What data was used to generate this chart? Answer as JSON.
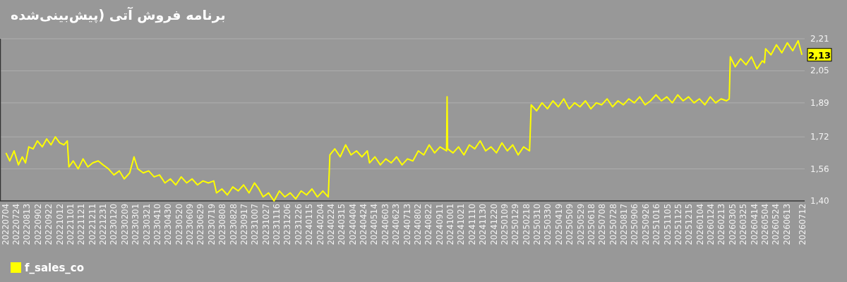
{
  "chart_data": {
    "type": "line",
    "title": "برنامه فروش آتی (پیش‌بینی‌شده",
    "xlim": [
      "2022-06-24",
      "2026-07-16"
    ],
    "xticks": [
      {
        "value": "2022-07-04",
        "label": "20220704"
      },
      {
        "value": "2022-07-24",
        "label": "20220724"
      },
      {
        "value": "2022-08-13",
        "label": "20220813"
      },
      {
        "value": "2022-09-02",
        "label": "20220902"
      },
      {
        "value": "2022-09-22",
        "label": "20220922"
      },
      {
        "value": "2022-10-12",
        "label": "20221012"
      },
      {
        "value": "2022-11-01",
        "label": "20221101"
      },
      {
        "value": "2022-11-21",
        "label": "20221121"
      },
      {
        "value": "2022-12-11",
        "label": "20221211"
      },
      {
        "value": "2022-12-31",
        "label": "20221231"
      },
      {
        "value": "2023-01-20",
        "label": "20230120"
      },
      {
        "value": "2023-02-09",
        "label": "20230209"
      },
      {
        "value": "2023-03-01",
        "label": "20230301"
      },
      {
        "value": "2023-03-21",
        "label": "20230321"
      },
      {
        "value": "2023-04-10",
        "label": "20230410"
      },
      {
        "value": "2023-04-30",
        "label": "20230430"
      },
      {
        "value": "2023-05-20",
        "label": "20230520"
      },
      {
        "value": "2023-06-09",
        "label": "20230609"
      },
      {
        "value": "2023-06-29",
        "label": "20230629"
      },
      {
        "value": "2023-07-19",
        "label": "20230719"
      },
      {
        "value": "2023-08-08",
        "label": "20230808"
      },
      {
        "value": "2023-08-28",
        "label": "20230828"
      },
      {
        "value": "2023-09-17",
        "label": "20230917"
      },
      {
        "value": "2023-10-07",
        "label": "20231007"
      },
      {
        "value": "2023-10-27",
        "label": "20231027"
      },
      {
        "value": "2023-11-16",
        "label": "20231116"
      },
      {
        "value": "2023-12-06",
        "label": "20231206"
      },
      {
        "value": "2023-12-26",
        "label": "20231226"
      },
      {
        "value": "2024-01-15",
        "label": "20240115"
      },
      {
        "value": "2024-02-04",
        "label": "20240204"
      },
      {
        "value": "2024-02-24",
        "label": "20240224"
      },
      {
        "value": "2024-03-15",
        "label": "20240315"
      },
      {
        "value": "2024-04-04",
        "label": "20240404"
      },
      {
        "value": "2024-04-24",
        "label": "20240424"
      },
      {
        "value": "2024-05-14",
        "label": "20240514"
      },
      {
        "value": "2024-06-03",
        "label": "20240603"
      },
      {
        "value": "2024-06-23",
        "label": "20240623"
      },
      {
        "value": "2024-07-13",
        "label": "20240713"
      },
      {
        "value": "2024-08-02",
        "label": "20240802"
      },
      {
        "value": "2024-08-22",
        "label": "20240822"
      },
      {
        "value": "2024-09-11",
        "label": "20240911"
      },
      {
        "value": "2024-10-01",
        "label": "20241001"
      },
      {
        "value": "2024-10-21",
        "label": "20241021"
      },
      {
        "value": "2024-11-10",
        "label": "20241110"
      },
      {
        "value": "2024-11-30",
        "label": "20241130"
      },
      {
        "value": "2024-12-20",
        "label": "20241220"
      },
      {
        "value": "2025-01-09",
        "label": "20250109"
      },
      {
        "value": "2025-01-29",
        "label": "20250129"
      },
      {
        "value": "2025-02-18",
        "label": "20250218"
      },
      {
        "value": "2025-03-10",
        "label": "20250310"
      },
      {
        "value": "2025-03-30",
        "label": "20250330"
      },
      {
        "value": "2025-04-19",
        "label": "20250419"
      },
      {
        "value": "2025-05-09",
        "label": "20250509"
      },
      {
        "value": "2025-05-29",
        "label": "20250529"
      },
      {
        "value": "2025-06-18",
        "label": "20250618"
      },
      {
        "value": "2025-07-08",
        "label": "20250708"
      },
      {
        "value": "2025-07-28",
        "label": "20250728"
      },
      {
        "value": "2025-08-17",
        "label": "20250817"
      },
      {
        "value": "2025-09-06",
        "label": "20250906"
      },
      {
        "value": "2025-09-26",
        "label": "20250926"
      },
      {
        "value": "2025-10-16",
        "label": "20251016"
      },
      {
        "value": "2025-11-05",
        "label": "20251105"
      },
      {
        "value": "2025-11-25",
        "label": "20251125"
      },
      {
        "value": "2025-12-15",
        "label": "20251215"
      },
      {
        "value": "2026-01-04",
        "label": "20260104"
      },
      {
        "value": "2026-01-24",
        "label": "20260124"
      },
      {
        "value": "2026-02-13",
        "label": "20260213"
      },
      {
        "value": "2026-03-05",
        "label": "20260305"
      },
      {
        "value": "2026-03-25",
        "label": "20260325"
      },
      {
        "value": "2026-04-14",
        "label": "20260414"
      },
      {
        "value": "2026-05-04",
        "label": "20260504"
      },
      {
        "value": "2026-05-24",
        "label": "20260524"
      },
      {
        "value": "2026-06-13",
        "label": "20260613"
      },
      {
        "value": "2026-07-12",
        "label": "20260712"
      }
    ],
    "ylim": [
      1.4,
      2.21
    ],
    "yticks": [
      {
        "value": 1.4,
        "label": "1,40"
      },
      {
        "value": 1.56,
        "label": "1,56"
      },
      {
        "value": 1.72,
        "label": "1,72"
      },
      {
        "value": 1.89,
        "label": "1,89"
      },
      {
        "value": 2.05,
        "label": "2,05"
      },
      {
        "value": 2.21,
        "label": "2,21"
      }
    ],
    "grid": "y",
    "legend": "bottom",
    "annotations": [
      {
        "text": "2,13",
        "x": "2026-07-11",
        "y": 2.13
      }
    ],
    "x": [
      "2022-07-05",
      "2022-07-12",
      "2022-07-20",
      "2022-07-28",
      "2022-08-04",
      "2022-08-10",
      "2022-08-16",
      "2022-08-24",
      "2022-09-01",
      "2022-09-10",
      "2022-09-18",
      "2022-09-26",
      "2022-10-04",
      "2022-10-12",
      "2022-10-20",
      "2022-10-26",
      "2022-10-29",
      "2022-11-06",
      "2022-11-15",
      "2022-11-24",
      "2022-12-03",
      "2022-12-12",
      "2022-12-22",
      "2022-12-31",
      "2023-01-10",
      "2023-01-20",
      "2023-01-30",
      "2023-02-08",
      "2023-02-18",
      "2023-02-26",
      "2023-03-05",
      "2023-03-15",
      "2023-03-25",
      "2023-04-04",
      "2023-04-14",
      "2023-04-24",
      "2023-05-04",
      "2023-05-14",
      "2023-05-24",
      "2023-06-03",
      "2023-06-13",
      "2023-06-23",
      "2023-07-03",
      "2023-07-13",
      "2023-07-23",
      "2023-07-28",
      "2023-08-07",
      "2023-08-17",
      "2023-08-27",
      "2023-09-06",
      "2023-09-16",
      "2023-09-26",
      "2023-10-06",
      "2023-10-14",
      "2023-10-22",
      "2023-11-01",
      "2023-11-11",
      "2023-11-21",
      "2023-12-01",
      "2023-12-11",
      "2023-12-21",
      "2023-12-31",
      "2024-01-10",
      "2024-01-20",
      "2024-01-30",
      "2024-02-09",
      "2024-02-19",
      "2024-02-22",
      "2024-03-02",
      "2024-03-12",
      "2024-03-22",
      "2024-04-01",
      "2024-04-11",
      "2024-04-21",
      "2024-05-01",
      "2024-05-05",
      "2024-05-15",
      "2024-05-25",
      "2024-06-04",
      "2024-06-14",
      "2024-06-24",
      "2024-07-04",
      "2024-07-14",
      "2024-07-24",
      "2024-08-03",
      "2024-08-13",
      "2024-08-23",
      "2024-09-02",
      "2024-09-12",
      "2024-09-24",
      "2024-09-25",
      "2024-09-26",
      "2024-10-06",
      "2024-10-16",
      "2024-10-26",
      "2024-11-05",
      "2024-11-15",
      "2024-11-25",
      "2024-12-05",
      "2024-12-15",
      "2024-12-25",
      "2025-01-04",
      "2025-01-14",
      "2025-01-24",
      "2025-02-03",
      "2025-02-13",
      "2025-02-24",
      "2025-02-27",
      "2025-03-09",
      "2025-03-19",
      "2025-03-29",
      "2025-04-08",
      "2025-04-18",
      "2025-04-28",
      "2025-05-08",
      "2025-05-18",
      "2025-05-28",
      "2025-06-07",
      "2025-06-17",
      "2025-06-27",
      "2025-07-07",
      "2025-07-17",
      "2025-07-27",
      "2025-08-06",
      "2025-08-16",
      "2025-08-26",
      "2025-09-05",
      "2025-09-15",
      "2025-09-25",
      "2025-10-05",
      "2025-10-15",
      "2025-10-25",
      "2025-11-04",
      "2025-11-14",
      "2025-11-24",
      "2025-12-04",
      "2025-12-14",
      "2025-12-24",
      "2026-01-03",
      "2026-01-13",
      "2026-01-23",
      "2026-02-02",
      "2026-02-12",
      "2026-02-22",
      "2026-02-27",
      "2026-03-01",
      "2026-03-10",
      "2026-03-20",
      "2026-03-30",
      "2026-04-09",
      "2026-04-19",
      "2026-04-29",
      "2026-05-03",
      "2026-05-05",
      "2026-05-15",
      "2026-05-25",
      "2026-06-04",
      "2026-06-14",
      "2026-06-24",
      "2026-07-04",
      "2026-07-11"
    ],
    "series": [
      {
        "name": "f_sales_co",
        "color": "#ffff00",
        "values": [
          1.64,
          1.6,
          1.65,
          1.58,
          1.62,
          1.59,
          1.67,
          1.66,
          1.7,
          1.67,
          1.71,
          1.68,
          1.72,
          1.69,
          1.68,
          1.7,
          1.57,
          1.6,
          1.56,
          1.61,
          1.57,
          1.59,
          1.6,
          1.58,
          1.56,
          1.53,
          1.55,
          1.51,
          1.54,
          1.62,
          1.56,
          1.54,
          1.55,
          1.52,
          1.53,
          1.49,
          1.51,
          1.48,
          1.52,
          1.49,
          1.51,
          1.48,
          1.5,
          1.49,
          1.5,
          1.44,
          1.46,
          1.43,
          1.47,
          1.45,
          1.48,
          1.44,
          1.49,
          1.46,
          1.42,
          1.44,
          1.4,
          1.45,
          1.42,
          1.44,
          1.41,
          1.45,
          1.43,
          1.46,
          1.42,
          1.45,
          1.42,
          1.63,
          1.66,
          1.62,
          1.68,
          1.63,
          1.65,
          1.62,
          1.65,
          1.59,
          1.62,
          1.58,
          1.61,
          1.59,
          1.62,
          1.58,
          1.61,
          1.6,
          1.65,
          1.63,
          1.68,
          1.64,
          1.67,
          1.65,
          1.92,
          1.66,
          1.64,
          1.67,
          1.63,
          1.68,
          1.66,
          1.7,
          1.65,
          1.67,
          1.64,
          1.69,
          1.65,
          1.68,
          1.63,
          1.67,
          1.65,
          1.88,
          1.85,
          1.89,
          1.86,
          1.9,
          1.87,
          1.91,
          1.86,
          1.89,
          1.87,
          1.9,
          1.86,
          1.89,
          1.88,
          1.91,
          1.87,
          1.9,
          1.88,
          1.91,
          1.89,
          1.92,
          1.88,
          1.9,
          1.93,
          1.9,
          1.92,
          1.89,
          1.93,
          1.9,
          1.92,
          1.89,
          1.91,
          1.88,
          1.92,
          1.89,
          1.91,
          1.9,
          1.91,
          2.12,
          2.07,
          2.11,
          2.08,
          2.12,
          2.06,
          2.1,
          2.09,
          2.16,
          2.13,
          2.18,
          2.14,
          2.19,
          2.15,
          2.2,
          2.13
        ]
      }
    ]
  }
}
